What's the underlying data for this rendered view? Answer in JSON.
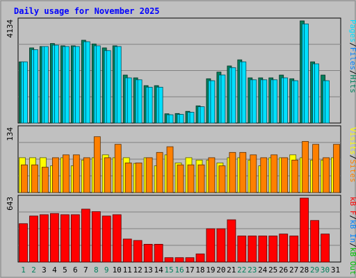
{
  "chart_data": {
    "type": "bar",
    "title": "Daily usage for November 2025",
    "categories": [
      "1",
      "2",
      "3",
      "4",
      "5",
      "6",
      "7",
      "8",
      "9",
      "10",
      "11",
      "12",
      "13",
      "14",
      "15",
      "16",
      "17",
      "18",
      "19",
      "20",
      "21",
      "22",
      "23",
      "24",
      "25",
      "26",
      "27",
      "28",
      "29",
      "30",
      "31"
    ],
    "weekend_days": [
      "1",
      "2",
      "8",
      "9",
      "15",
      "16",
      "22",
      "23",
      "29",
      "30"
    ],
    "panels": [
      {
        "id": "hits-files-pages",
        "ymax_label": "4134",
        "ymax": 4134,
        "legend": [
          "Pages",
          "/",
          "Files",
          "/",
          "Hits"
        ],
        "legend_colors": [
          "#00e0ff",
          "#000000",
          "#0080ff",
          "#000000",
          "#00805c"
        ],
        "series": [
          {
            "name": "Hits",
            "color": "#00805c",
            "values": [
              2476,
              3039,
              3096,
              3218,
              3125,
              3125,
              3348,
              3201,
              3039,
              3125,
              1941,
              1827,
              1513,
              1513,
              373,
              385,
              473,
              695,
              1790,
              2062,
              2309,
              2555,
              1827,
              1827,
              1827,
              1941,
              1790,
              4134,
              2476,
              1941,
              null
            ]
          },
          {
            "name": "Files",
            "color": "#00e0ff",
            "values": [
              2476,
              2968,
              3096,
              3150,
              3096,
              3096,
              3291,
              3125,
              2930,
              3096,
              1827,
              1749,
              1451,
              1451,
              335,
              348,
              435,
              660,
              1714,
              1944,
              2240,
              2476,
              1749,
              1749,
              1749,
              1827,
              1714,
              4009,
              2394,
              1714,
              null
            ]
          },
          {
            "name": "Pages",
            "color": "#00e0ff",
            "values": [
              2476,
              2968,
              3096,
              3150,
              3096,
              3096,
              3291,
              3125,
              2930,
              3096,
              1827,
              1749,
              1451,
              1451,
              335,
              348,
              435,
              660,
              1714,
              1944,
              2240,
              2476,
              1749,
              1749,
              1749,
              1827,
              1714,
              4009,
              2394,
              1714,
              null
            ]
          }
        ]
      },
      {
        "id": "sites-visits",
        "ymax_label": "134",
        "ymax": 134,
        "legend": [
          "Visits",
          "/",
          "Sites"
        ],
        "legend_colors": [
          "#ffff00",
          "#000000",
          "#ff8000"
        ],
        "series": [
          {
            "name": "Visits",
            "color": "#ffff00",
            "values": [
              73,
              73,
              73,
              56,
              73,
              56,
              68,
              73,
              79,
              73,
              73,
              61,
              73,
              56,
              79,
              62,
              73,
              68,
              68,
              62,
              73,
              73,
              68,
              56,
              73,
              73,
              79,
              73,
              68,
              68,
              73
            ]
          },
          {
            "name": "Sites",
            "color": "#ff8000",
            "values": [
              58,
              58,
              53,
              73,
              79,
              79,
              73,
              117,
              73,
              101,
              62,
              62,
              73,
              84,
              96,
              58,
              58,
              58,
              73,
              56,
              84,
              84,
              79,
              73,
              79,
              73,
              68,
              107,
              101,
              73,
              101
            ]
          }
        ]
      },
      {
        "id": "kbytes",
        "ymax_label": "643",
        "ymax": 643,
        "legend": [
          "kB F",
          "/",
          "kB In",
          "/",
          "kB Out"
        ],
        "legend_colors": [
          "#ff0000",
          "#000000",
          "#0080ff",
          "#000000",
          "#00c000"
        ],
        "series": [
          {
            "name": "kB F",
            "color": "#ff0000",
            "values": [
              386,
              463,
              476,
              488,
              476,
              476,
              532,
              507,
              463,
              476,
              231,
              217,
              179,
              179,
              44,
              44,
              44,
              82,
              335,
              335,
              425,
              262,
              262,
              262,
              262,
              282,
              262,
              643,
              418,
              282,
              null
            ]
          }
        ]
      }
    ]
  }
}
